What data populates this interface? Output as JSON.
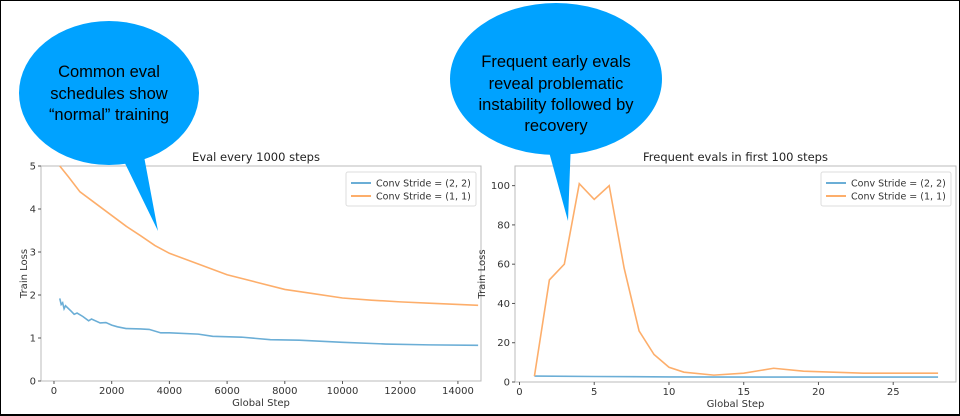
{
  "colors": {
    "series_blue": "#6baed6",
    "series_orange": "#fdae6b",
    "bubble": "#00a2ff"
  },
  "callouts": [
    {
      "lines": [
        "Common eval",
        "schedules show",
        "“normal” training"
      ]
    },
    {
      "lines": [
        "Frequent early evals",
        "reveal problematic",
        "instability followed by",
        "recovery"
      ]
    }
  ],
  "chart_data": [
    {
      "type": "line",
      "title": "Eval every 1000 steps",
      "xlabel": "Global Step",
      "ylabel": "Train Loss",
      "xlim": [
        -450,
        14800
      ],
      "ylim": [
        0,
        5
      ],
      "xticks": [
        0,
        2000,
        4000,
        6000,
        8000,
        10000,
        12000,
        14000
      ],
      "yticks": [
        0,
        1,
        2,
        3,
        4,
        5
      ],
      "grid": false,
      "legend": "top-right",
      "series": [
        {
          "name": "Conv Stride =  (2, 2)",
          "color": "#6baed6",
          "x": [
            200,
            250,
            300,
            350,
            400,
            600,
            700,
            800,
            1000,
            1200,
            1300,
            1600,
            1800,
            2000,
            2200,
            2500,
            3000,
            3300,
            3700,
            4000,
            5000,
            5500,
            6500,
            7500,
            8500,
            10000,
            11500,
            13000,
            14700
          ],
          "y": [
            1.92,
            1.78,
            1.82,
            1.68,
            1.75,
            1.62,
            1.55,
            1.58,
            1.5,
            1.4,
            1.44,
            1.35,
            1.36,
            1.3,
            1.26,
            1.22,
            1.21,
            1.2,
            1.12,
            1.12,
            1.09,
            1.04,
            1.02,
            0.96,
            0.95,
            0.9,
            0.86,
            0.84,
            0.83
          ]
        },
        {
          "name": "Conv Stride =  (1, 1)",
          "color": "#fdae6b",
          "x": [
            200,
            500,
            900,
            1500,
            2000,
            2500,
            3000,
            3500,
            4000,
            5000,
            6000,
            7000,
            8000,
            9000,
            10000,
            11000,
            12000,
            13000,
            14000,
            14700
          ],
          "y": [
            5.0,
            4.75,
            4.4,
            4.1,
            3.85,
            3.6,
            3.38,
            3.15,
            2.97,
            2.72,
            2.47,
            2.3,
            2.13,
            2.03,
            1.93,
            1.88,
            1.84,
            1.81,
            1.78,
            1.76
          ]
        }
      ]
    },
    {
      "type": "line",
      "title": "Frequent evals in first 100 steps",
      "xlabel": "Global Step",
      "ylabel": "Train Loss",
      "xlim": [
        -0.3,
        29.2
      ],
      "ylim": [
        0,
        110
      ],
      "xticks": [
        0,
        5,
        10,
        15,
        20,
        25
      ],
      "yticks": [
        0,
        20,
        40,
        60,
        80,
        100
      ],
      "grid": false,
      "legend": "top-right",
      "series": [
        {
          "name": "Conv Stride =  (2, 2)",
          "color": "#6baed6",
          "x": [
            1,
            5,
            10,
            15,
            20,
            25,
            28
          ],
          "y": [
            3,
            2.8,
            2.6,
            2.5,
            2.5,
            2.5,
            2.5
          ]
        },
        {
          "name": "Conv Stride =  (1, 1)",
          "color": "#fdae6b",
          "x": [
            1,
            2,
            3,
            4,
            5,
            6,
            7,
            8,
            9,
            10,
            11,
            13,
            15,
            17,
            19,
            23,
            28
          ],
          "y": [
            3,
            52,
            60,
            101,
            93,
            100,
            58,
            26,
            14,
            7.5,
            5,
            3.5,
            4.5,
            7,
            5.5,
            4.5,
            4.5
          ]
        }
      ]
    }
  ]
}
